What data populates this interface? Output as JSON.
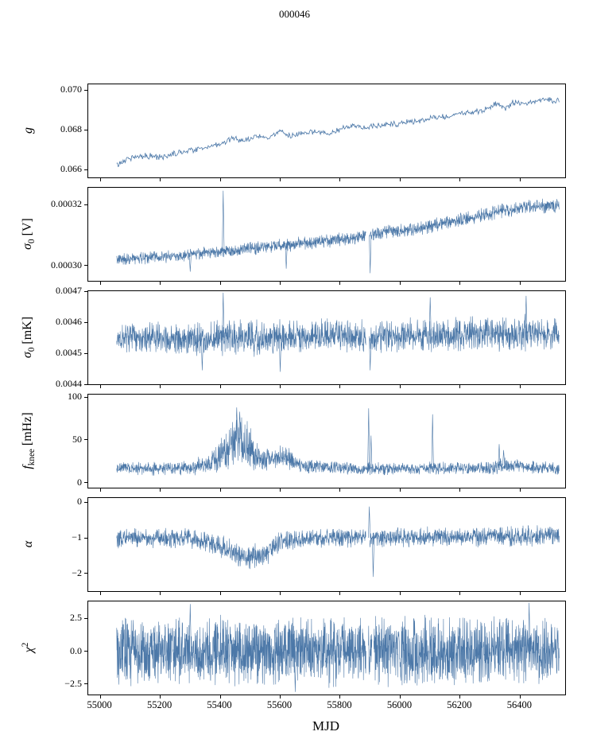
{
  "chart_data": {
    "type": "line",
    "title": "000046",
    "xlabel": "MJD",
    "line_color": "#4c78a8",
    "background": "#ffffff",
    "xlim": [
      54960,
      56550
    ],
    "x_range_data": [
      55055,
      56530
    ],
    "x_ticks": [
      {
        "value": 55000,
        "label": "55000"
      },
      {
        "value": 55200,
        "label": "55200"
      },
      {
        "value": 55400,
        "label": "55400"
      },
      {
        "value": 55600,
        "label": "55600"
      },
      {
        "value": 55800,
        "label": "55800"
      },
      {
        "value": 56000,
        "label": "56000"
      },
      {
        "value": 56200,
        "label": "56200"
      },
      {
        "value": 56400,
        "label": "56400"
      }
    ],
    "panels": [
      {
        "id": "g",
        "ylabel": [
          {
            "text": "g",
            "style": "italic"
          }
        ],
        "yticks": [
          {
            "value": 0.07,
            "label": "0.070"
          },
          {
            "value": 0.068,
            "label": "0.068"
          },
          {
            "value": 0.066,
            "label": "0.066"
          }
        ],
        "ylim": [
          0.0656,
          0.0703
        ],
        "series": {
          "points": 620,
          "trend": [
            [
              55055,
              0.0662
            ],
            [
              55075,
              0.0664
            ],
            [
              55100,
              0.0666
            ],
            [
              55150,
              0.0667
            ],
            [
              55200,
              0.0666
            ],
            [
              55250,
              0.0668
            ],
            [
              55300,
              0.067
            ],
            [
              55350,
              0.0671
            ],
            [
              55400,
              0.0673
            ],
            [
              55450,
              0.0676
            ],
            [
              55480,
              0.0674
            ],
            [
              55520,
              0.0677
            ],
            [
              55560,
              0.0676
            ],
            [
              55600,
              0.0679
            ],
            [
              55640,
              0.0677
            ],
            [
              55680,
              0.0678
            ],
            [
              55720,
              0.0679
            ],
            [
              55760,
              0.0678
            ],
            [
              55800,
              0.068
            ],
            [
              55840,
              0.0682
            ],
            [
              55880,
              0.0681
            ],
            [
              55920,
              0.0682
            ],
            [
              55960,
              0.0683
            ],
            [
              56000,
              0.0683
            ],
            [
              56040,
              0.0684
            ],
            [
              56080,
              0.0685
            ],
            [
              56120,
              0.0686
            ],
            [
              56160,
              0.0687
            ],
            [
              56200,
              0.0688
            ],
            [
              56240,
              0.0689
            ],
            [
              56280,
              0.069
            ],
            [
              56320,
              0.0693
            ],
            [
              56350,
              0.0691
            ],
            [
              56380,
              0.0694
            ],
            [
              56420,
              0.0693
            ],
            [
              56460,
              0.0695
            ],
            [
              56530,
              0.0695
            ]
          ],
          "noise": [
            [
              55055,
              0.00018
            ],
            [
              56530,
              0.00018
            ]
          ],
          "spikes": [],
          "gaps": []
        }
      },
      {
        "id": "sigma0-v",
        "ylabel": [
          {
            "text": "σ",
            "style": "italic"
          },
          {
            "text": "0",
            "style": "sub"
          },
          {
            "text": " [V]",
            "style": "normal"
          }
        ],
        "yticks": [
          {
            "value": 0.00032,
            "label": "0.00032"
          },
          {
            "value": 0.0003,
            "label": "0.00030"
          }
        ],
        "ylim": [
          0.000295,
          0.0003255
        ],
        "series": {
          "points": 1900,
          "trend": [
            [
              55055,
              0.000302
            ],
            [
              55150,
              0.0003025
            ],
            [
              55250,
              0.000303
            ],
            [
              55350,
              0.000304
            ],
            [
              55450,
              0.000305
            ],
            [
              55550,
              0.000306
            ],
            [
              55650,
              0.000307
            ],
            [
              55750,
              0.000308
            ],
            [
              55850,
              0.000309
            ],
            [
              55950,
              0.000311
            ],
            [
              56050,
              0.000312
            ],
            [
              56150,
              0.000314
            ],
            [
              56250,
              0.000316
            ],
            [
              56350,
              0.000318
            ],
            [
              56420,
              0.000319
            ],
            [
              56530,
              0.00032
            ]
          ],
          "noise": [
            [
              55055,
              2.2e-06
            ],
            [
              56530,
              2.8e-06
            ]
          ],
          "spikes": [
            [
              55410,
              0.0003245
            ],
            [
              55300,
              0.000298
            ],
            [
              55620,
              0.000299
            ],
            [
              55900,
              0.0002975
            ]
          ],
          "gaps": [
            [
              55886,
              55898
            ]
          ]
        }
      },
      {
        "id": "sigma0-mk",
        "ylabel": [
          {
            "text": "σ",
            "style": "italic"
          },
          {
            "text": "0",
            "style": "sub"
          },
          {
            "text": " [mK]",
            "style": "normal"
          }
        ],
        "yticks": [
          {
            "value": 0.0047,
            "label": "0.0047"
          },
          {
            "value": 0.0046,
            "label": "0.0046"
          },
          {
            "value": 0.0045,
            "label": "0.0045"
          },
          {
            "value": 0.0044,
            "label": "0.0044"
          }
        ],
        "ylim": [
          0.0044,
          0.0047
        ],
        "series": {
          "points": 1900,
          "trend": [
            [
              55055,
              0.00455
            ],
            [
              55200,
              0.004552
            ],
            [
              55300,
              0.004545
            ],
            [
              55400,
              0.00455
            ],
            [
              55500,
              0.004548
            ],
            [
              55600,
              0.00455
            ],
            [
              55700,
              0.004552
            ],
            [
              55800,
              0.004555
            ],
            [
              55900,
              0.004555
            ],
            [
              56000,
              0.004558
            ],
            [
              56100,
              0.004558
            ],
            [
              56200,
              0.00456
            ],
            [
              56300,
              0.004562
            ],
            [
              56400,
              0.004565
            ],
            [
              56530,
              0.00456
            ]
          ],
          "noise": [
            [
              55055,
              5.5e-05
            ],
            [
              55400,
              6e-05
            ],
            [
              55500,
              6.5e-05
            ],
            [
              55600,
              6e-05
            ],
            [
              56000,
              6e-05
            ],
            [
              56530,
              6.5e-05
            ]
          ],
          "spikes": [
            [
              55410,
              0.004695
            ],
            [
              55340,
              0.004445
            ],
            [
              55600,
              0.00444
            ],
            [
              55900,
              0.004445
            ],
            [
              56100,
              0.00468
            ],
            [
              56420,
              0.004685
            ]
          ],
          "gaps": [
            [
              55886,
              55898
            ]
          ]
        }
      },
      {
        "id": "fknee",
        "ylabel": [
          {
            "text": "f",
            "style": "italic"
          },
          {
            "text": "knee",
            "style": "sub"
          },
          {
            "text": " [mHz]",
            "style": "normal"
          }
        ],
        "yticks": [
          {
            "value": 100,
            "label": "100"
          },
          {
            "value": 50,
            "label": "50"
          },
          {
            "value": 0,
            "label": "0"
          }
        ],
        "ylim": [
          -6,
          103
        ],
        "series": {
          "points": 1900,
          "trend": [
            [
              55055,
              17
            ],
            [
              55250,
              16
            ],
            [
              55320,
              18
            ],
            [
              55360,
              22
            ],
            [
              55400,
              30
            ],
            [
              55430,
              42
            ],
            [
              55460,
              52
            ],
            [
              55490,
              46
            ],
            [
              55520,
              34
            ],
            [
              55550,
              26
            ],
            [
              55580,
              30
            ],
            [
              55610,
              32
            ],
            [
              55640,
              24
            ],
            [
              55680,
              20
            ],
            [
              55750,
              18
            ],
            [
              55900,
              16
            ],
            [
              56100,
              17
            ],
            [
              56300,
              17
            ],
            [
              56340,
              20
            ],
            [
              56530,
              16
            ]
          ],
          "noise": [
            [
              55055,
              8
            ],
            [
              55300,
              10
            ],
            [
              55360,
              14
            ],
            [
              55400,
              22
            ],
            [
              55440,
              32
            ],
            [
              55470,
              34
            ],
            [
              55500,
              28
            ],
            [
              55540,
              18
            ],
            [
              55580,
              16
            ],
            [
              55620,
              16
            ],
            [
              55660,
              10
            ],
            [
              55750,
              8
            ],
            [
              56000,
              8
            ],
            [
              56300,
              8
            ],
            [
              56340,
              12
            ],
            [
              56400,
              8
            ],
            [
              56530,
              8
            ]
          ],
          "spikes": [
            [
              55455,
              88
            ],
            [
              55465,
              83
            ],
            [
              55895,
              87
            ],
            [
              55903,
              55
            ],
            [
              56108,
              80
            ],
            [
              56330,
              45
            ],
            [
              56345,
              38
            ]
          ],
          "gaps": []
        }
      },
      {
        "id": "alpha",
        "ylabel": [
          {
            "text": "α",
            "style": "italic"
          }
        ],
        "yticks": [
          {
            "value": 0,
            "label": "0"
          },
          {
            "value": -1,
            "label": "−1"
          },
          {
            "value": -2,
            "label": "−2"
          }
        ],
        "ylim": [
          -2.5,
          0.12
        ],
        "series": {
          "points": 1900,
          "trend": [
            [
              55055,
              -1.0
            ],
            [
              55200,
              -1.0
            ],
            [
              55300,
              -1.02
            ],
            [
              55350,
              -1.12
            ],
            [
              55400,
              -1.25
            ],
            [
              55430,
              -1.35
            ],
            [
              55460,
              -1.5
            ],
            [
              55500,
              -1.55
            ],
            [
              55540,
              -1.5
            ],
            [
              55570,
              -1.35
            ],
            [
              55600,
              -1.1
            ],
            [
              55640,
              -1.05
            ],
            [
              55700,
              -1.0
            ],
            [
              55900,
              -1.0
            ],
            [
              56100,
              -0.98
            ],
            [
              56300,
              -0.97
            ],
            [
              56530,
              -0.95
            ]
          ],
          "noise": [
            [
              55055,
              0.3
            ],
            [
              55300,
              0.32
            ],
            [
              55400,
              0.38
            ],
            [
              55500,
              0.4
            ],
            [
              55600,
              0.35
            ],
            [
              55700,
              0.3
            ],
            [
              56530,
              0.32
            ]
          ],
          "spikes": [
            [
              55897,
              -0.12
            ],
            [
              55910,
              -2.1
            ]
          ],
          "gaps": [
            [
              55886,
              55898
            ]
          ]
        }
      },
      {
        "id": "chi2",
        "ylabel": [
          {
            "text": "χ",
            "style": "italic"
          },
          {
            "text": "2",
            "style": "sup"
          }
        ],
        "yticks": [
          {
            "value": 2.5,
            "label": "2.5"
          },
          {
            "value": 0.0,
            "label": "0.0"
          },
          {
            "value": -2.5,
            "label": "−2.5"
          }
        ],
        "ylim": [
          -3.3,
          3.8
        ],
        "series": {
          "points": 2300,
          "trend": [
            [
              55055,
              0
            ],
            [
              56530,
              0
            ]
          ],
          "noise": [
            [
              55055,
              2.9
            ],
            [
              56530,
              2.9
            ]
          ],
          "spikes": [
            [
              55300,
              3.6
            ],
            [
              56430,
              3.7
            ],
            [
              55650,
              -3.1
            ]
          ],
          "gaps": [
            [
              55886,
              55894
            ],
            [
              55906,
              55912
            ]
          ]
        }
      }
    ]
  }
}
